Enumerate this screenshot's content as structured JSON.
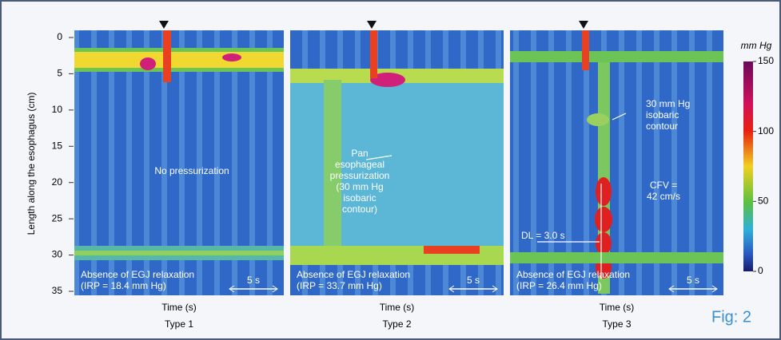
{
  "figure": {
    "y_axis": {
      "label": "Length along the esophagus (cm)",
      "ticks": [
        0,
        5,
        10,
        15,
        20,
        25,
        30,
        35
      ]
    },
    "colorbar": {
      "title": "mm Hg",
      "ticks": [
        150,
        100,
        50,
        0
      ]
    },
    "panels": [
      {
        "annotations": [
          {
            "lines": [
              "No pressurization"
            ]
          }
        ],
        "footer": [
          "Absence of EGJ relaxation",
          "(IRP = 18.4 mm Hg)"
        ],
        "scale": "5 s",
        "x_label": "Time (s)",
        "type": "Type 1"
      },
      {
        "annotations": [
          {
            "lines": [
              "Pan",
              "esophageal",
              "pressurization",
              "(30 mm Hg",
              "isobaric",
              "contour)"
            ]
          }
        ],
        "footer": [
          "Absence of EGJ relaxation",
          "(IRP = 33.7 mm Hg)"
        ],
        "scale": "5 s",
        "x_label": "Time (s)",
        "type": "Type 2"
      },
      {
        "annotations": [
          {
            "lines": [
              "30 mm Hg",
              "isobaric",
              "contour"
            ]
          },
          {
            "lines": [
              "CFV =",
              "42 cm/s"
            ]
          },
          {
            "lines": [
              "DL = 3.0 s"
            ]
          }
        ],
        "footer": [
          "Absence of EGJ relaxation",
          "(IRP = 26.4 mm Hg)"
        ],
        "scale": "5 s",
        "x_label": "Time (s)",
        "type": "Type 3"
      }
    ],
    "fig_label": "Fig: 2"
  }
}
